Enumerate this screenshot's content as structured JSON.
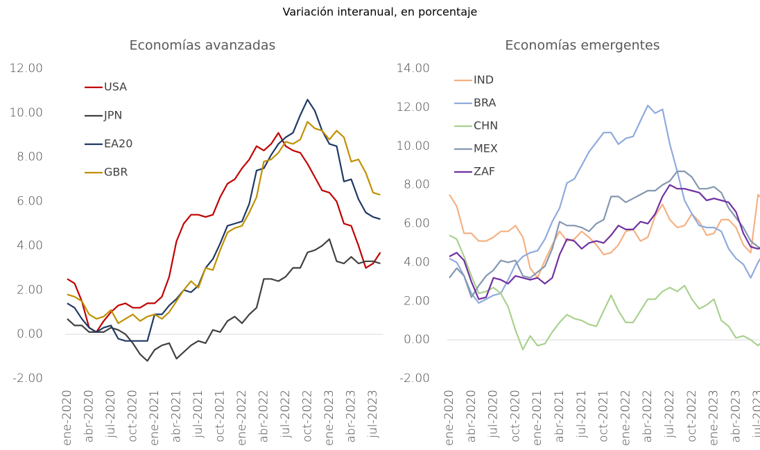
{
  "title": "Variación interanual, en porcentaje",
  "chart_data": [
    {
      "type": "line",
      "title": "Economías avanzadas",
      "legend": "top-left",
      "grid": "zero",
      "categories": [
        "ene-2020",
        null,
        null,
        "abr-2020",
        null,
        null,
        "jul-2020",
        null,
        null,
        "oct-2020",
        null,
        null,
        "ene-2021",
        null,
        null,
        "abr-2021",
        null,
        null,
        "jul-2021",
        null,
        null,
        "oct-2021",
        null,
        null,
        "ene-2022",
        null,
        null,
        "abr-2022",
        null,
        null,
        "jul-2022",
        null,
        null,
        "oct-2022",
        null,
        null,
        "ene-2023",
        null,
        null,
        "abr-2023",
        null,
        null,
        "jul-2023",
        null
      ],
      "ylim": [
        -2,
        12
      ],
      "yticks": [
        {
          "value": -2,
          "label": "-2.00"
        },
        {
          "value": 0,
          "label": "0.00"
        },
        {
          "value": 2,
          "label": "2.00"
        },
        {
          "value": 4,
          "label": "4.00"
        },
        {
          "value": 6,
          "label": "6.00"
        },
        {
          "value": 8,
          "label": "8.00"
        },
        {
          "value": 10,
          "label": "10.00"
        },
        {
          "value": 12,
          "label": "12.00"
        }
      ],
      "series": [
        {
          "name": "USA",
          "color": "#c00000",
          "values": [
            2.5,
            2.3,
            1.5,
            0.3,
            0.1,
            0.6,
            1.0,
            1.3,
            1.4,
            1.2,
            1.2,
            1.4,
            1.4,
            1.7,
            2.6,
            4.2,
            5.0,
            5.4,
            5.4,
            5.3,
            5.4,
            6.2,
            6.8,
            7.0,
            7.5,
            7.9,
            8.5,
            8.3,
            8.6,
            9.1,
            8.5,
            8.3,
            8.2,
            7.7,
            7.1,
            6.5,
            6.4,
            6.0,
            5.0,
            4.9,
            4.0,
            3.0,
            3.2,
            3.7
          ]
        },
        {
          "name": "JPN",
          "color": "#404040",
          "values": [
            0.7,
            0.4,
            0.4,
            0.1,
            0.1,
            0.1,
            0.3,
            0.2,
            0.0,
            -0.4,
            -0.9,
            -1.2,
            -0.7,
            -0.5,
            -0.4,
            -1.1,
            -0.8,
            -0.5,
            -0.3,
            -0.4,
            0.2,
            0.1,
            0.6,
            0.8,
            0.5,
            0.9,
            1.2,
            2.5,
            2.5,
            2.4,
            2.6,
            3.0,
            3.0,
            3.7,
            3.8,
            4.0,
            4.3,
            3.3,
            3.2,
            3.5,
            3.2,
            3.3,
            3.3,
            3.2
          ]
        },
        {
          "name": "EA20",
          "color": "#1f3864",
          "values": [
            1.4,
            1.2,
            0.7,
            0.3,
            0.1,
            0.3,
            0.4,
            -0.2,
            -0.3,
            -0.3,
            -0.3,
            -0.3,
            0.9,
            0.9,
            1.3,
            1.6,
            2.0,
            1.9,
            2.2,
            3.0,
            3.4,
            4.1,
            4.9,
            5.0,
            5.1,
            5.9,
            7.4,
            7.5,
            8.1,
            8.6,
            8.9,
            9.1,
            9.9,
            10.6,
            10.1,
            9.2,
            8.6,
            8.5,
            6.9,
            7.0,
            6.1,
            5.5,
            5.3,
            5.2
          ]
        },
        {
          "name": "GBR",
          "color": "#bf9000",
          "values": [
            1.8,
            1.7,
            1.5,
            0.9,
            0.7,
            0.8,
            1.1,
            0.5,
            0.7,
            0.9,
            0.6,
            0.8,
            0.9,
            0.7,
            1.0,
            1.5,
            2.0,
            2.4,
            2.1,
            3.0,
            2.9,
            3.8,
            4.6,
            4.8,
            4.9,
            5.5,
            6.2,
            7.8,
            7.9,
            8.2,
            8.7,
            8.6,
            8.8,
            9.6,
            9.3,
            9.2,
            8.8,
            9.2,
            8.9,
            7.8,
            7.9,
            7.3,
            6.4,
            6.3
          ]
        }
      ]
    },
    {
      "type": "line",
      "title": "Economías emergentes",
      "legend": "top-left",
      "grid": "zero",
      "categories": [
        "ene-2020",
        null,
        null,
        "abr-2020",
        null,
        null,
        "jul-2020",
        null,
        null,
        "oct-2020",
        null,
        null,
        "ene-2021",
        null,
        null,
        "abr-2021",
        null,
        null,
        "jul-2021",
        null,
        null,
        "oct-2021",
        null,
        null,
        "ene-2022",
        null,
        null,
        "abr-2022",
        null,
        null,
        "jul-2022",
        null,
        null,
        "oct-2022",
        null,
        null,
        "ene-2023",
        null,
        null,
        "abr-2023",
        null,
        null,
        "jul-2023",
        null
      ],
      "ylim": [
        -2,
        14
      ],
      "yticks": [
        {
          "value": -2,
          "label": "-2.00"
        },
        {
          "value": 0,
          "label": "0.00"
        },
        {
          "value": 2,
          "label": "2.00"
        },
        {
          "value": 4,
          "label": "4.00"
        },
        {
          "value": 6,
          "label": "6.00"
        },
        {
          "value": 8,
          "label": "8.00"
        },
        {
          "value": 10,
          "label": "10.00"
        },
        {
          "value": 12,
          "label": "12.00"
        },
        {
          "value": 14,
          "label": "14.00"
        }
      ],
      "series": [
        {
          "name": "IND",
          "color": "#f4b183",
          "values": [
            7.5,
            6.9,
            5.5,
            5.5,
            5.1,
            5.1,
            5.3,
            5.6,
            5.6,
            5.9,
            5.3,
            3.7,
            3.2,
            4.1,
            4.9,
            5.6,
            5.1,
            5.2,
            5.6,
            5.3,
            4.9,
            4.4,
            4.5,
            4.9,
            5.6,
            5.7,
            5.1,
            5.3,
            6.4,
            7.0,
            6.2,
            5.8,
            5.9,
            6.5,
            6.1,
            5.4,
            5.5,
            6.2,
            6.2,
            5.8,
            4.9,
            4.5,
            7.5,
            7.1
          ]
        },
        {
          "name": "BRA",
          "color": "#8faadc",
          "values": [
            4.2,
            4.0,
            3.3,
            2.4,
            1.9,
            2.1,
            2.3,
            2.4,
            3.1,
            3.9,
            4.3,
            4.5,
            4.6,
            5.2,
            6.1,
            6.8,
            8.1,
            8.3,
            9.0,
            9.7,
            10.2,
            10.7,
            10.7,
            10.1,
            10.4,
            10.5,
            11.3,
            12.1,
            11.7,
            11.9,
            10.1,
            8.7,
            7.2,
            6.5,
            5.9,
            5.8,
            5.8,
            5.6,
            4.7,
            4.2,
            3.9,
            3.2,
            4.0,
            4.6
          ]
        },
        {
          "name": "CHN",
          "color": "#a9d18e",
          "values": [
            5.4,
            5.2,
            4.3,
            3.3,
            2.4,
            2.5,
            2.7,
            2.4,
            1.7,
            0.5,
            -0.5,
            0.2,
            -0.3,
            -0.2,
            0.4,
            0.9,
            1.3,
            1.1,
            1.0,
            0.8,
            0.7,
            1.5,
            2.3,
            1.5,
            0.9,
            0.9,
            1.5,
            2.1,
            2.1,
            2.5,
            2.7,
            2.5,
            2.8,
            2.1,
            1.6,
            1.8,
            2.1,
            1.0,
            0.7,
            0.1,
            0.2,
            0.0,
            -0.3,
            0.1
          ]
        },
        {
          "name": "MEX",
          "color": "#8497b0",
          "values": [
            3.2,
            3.7,
            3.3,
            2.2,
            2.8,
            3.3,
            3.6,
            4.1,
            4.0,
            4.1,
            3.3,
            3.2,
            3.5,
            3.8,
            4.7,
            6.1,
            5.9,
            5.9,
            5.8,
            5.6,
            6.0,
            6.2,
            7.4,
            7.4,
            7.1,
            7.3,
            7.5,
            7.7,
            7.7,
            8.0,
            8.2,
            8.7,
            8.7,
            8.4,
            7.8,
            7.8,
            7.9,
            7.6,
            6.8,
            6.3,
            5.8,
            5.1,
            4.8,
            4.6
          ]
        },
        {
          "name": "ZAF",
          "color": "#7030a0",
          "values": [
            4.3,
            4.5,
            4.1,
            3.0,
            2.1,
            2.2,
            3.2,
            3.1,
            2.9,
            3.3,
            3.2,
            3.1,
            3.2,
            2.9,
            3.2,
            4.4,
            5.2,
            5.1,
            4.7,
            5.0,
            5.1,
            5.0,
            5.4,
            5.9,
            5.7,
            5.7,
            6.1,
            6.0,
            6.5,
            7.4,
            8.0,
            7.8,
            7.8,
            7.7,
            7.6,
            7.2,
            7.3,
            7.2,
            7.1,
            6.6,
            5.5,
            4.8,
            4.7,
            4.8
          ]
        }
      ]
    }
  ]
}
